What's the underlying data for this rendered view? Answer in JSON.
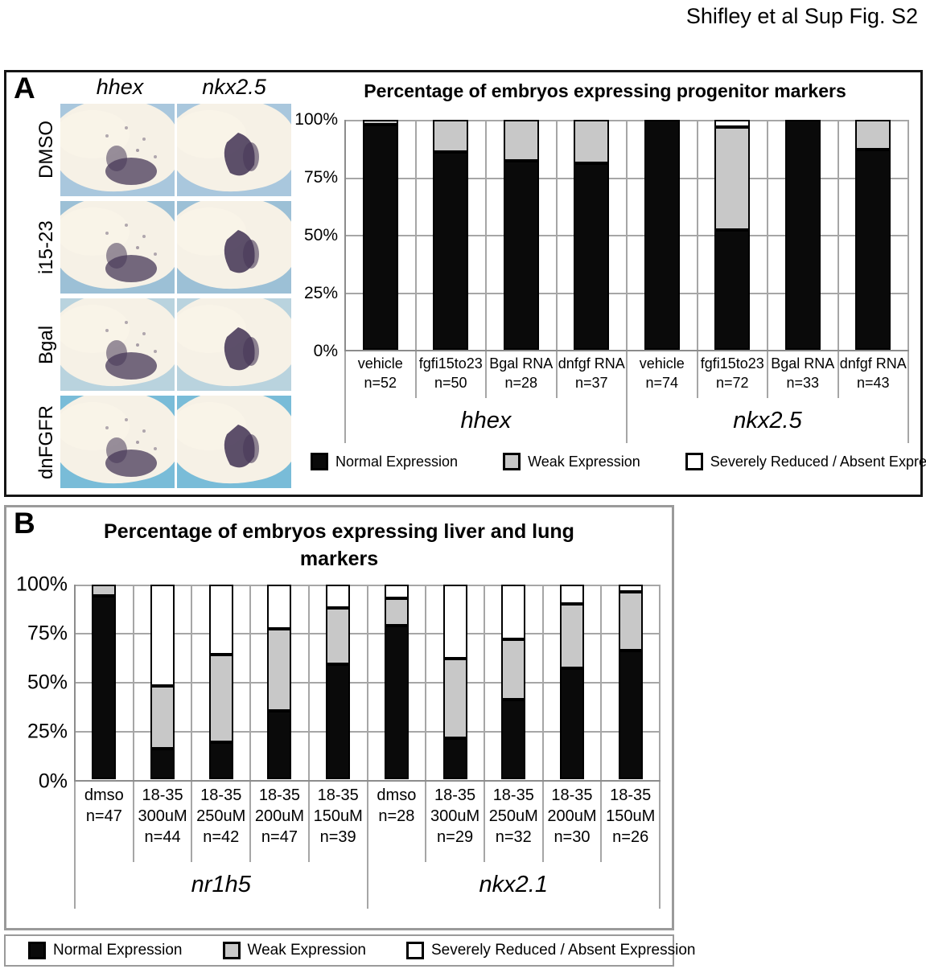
{
  "page": {
    "title": "Shifley et al Sup Fig. S2"
  },
  "colors": {
    "normal": "#0a0a0a",
    "weak": "#c8c8c8",
    "severe": "#ffffff",
    "segment_border": "#000000",
    "grid": "#a6a6a6",
    "axis": "#8c8c8c",
    "panel_a_border": "#151515",
    "panel_b_border": "#9a9a9a"
  },
  "legend_items": [
    {
      "name": "normal",
      "label": "Normal Expression"
    },
    {
      "name": "weak",
      "label": "Weak Expression"
    },
    {
      "name": "severe",
      "label": "Severely Reduced / Absent Expression"
    }
  ],
  "panel_a": {
    "label": "A",
    "embryo_grid": {
      "col_headers": [
        "hhex",
        "nkx2.5"
      ],
      "rows": [
        {
          "label": "DMSO",
          "bg": "#a9c7dd"
        },
        {
          "label": "i15-23",
          "bg": "#9cc0d6"
        },
        {
          "label": "Bgal",
          "bg": "#b9d3de"
        },
        {
          "label": "dnFGFR",
          "bg": "#79bcd8"
        }
      ],
      "embryo_body_color": "#f2ead9",
      "stain_color": "#473858"
    }
  },
  "panel_b": {
    "label": "B"
  },
  "chart_data": [
    {
      "id": "chart-a",
      "type": "bar",
      "stacked": true,
      "title": "Percentage of embryos expressing progenitor markers",
      "ylabel": "",
      "ylim": [
        0,
        100
      ],
      "yticks": [
        "100%",
        "75%",
        "50%",
        "25%",
        "0%"
      ],
      "grid": true,
      "legend_position": "bottom",
      "series_keys": [
        "normal",
        "weak",
        "severe"
      ],
      "series_names": [
        "Normal Expression",
        "Weak Expression",
        "Severely Reduced / Absent Expression"
      ],
      "groups": [
        {
          "label": "hhex",
          "span": 4
        },
        {
          "label": "nkx2.5",
          "span": 4
        }
      ],
      "categories": [
        {
          "lines": [
            "vehicle",
            "n=52"
          ],
          "normal": 98,
          "weak": 2,
          "severe": 0
        },
        {
          "lines": [
            "fgfi15to23",
            "n=50"
          ],
          "normal": 86,
          "weak": 14,
          "severe": 0
        },
        {
          "lines": [
            "Bgal RNA",
            "n=28"
          ],
          "normal": 82,
          "weak": 18,
          "severe": 0
        },
        {
          "lines": [
            "dnfgf RNA",
            "n=37"
          ],
          "normal": 81,
          "weak": 19,
          "severe": 0
        },
        {
          "lines": [
            "vehicle",
            "n=74"
          ],
          "normal": 100,
          "weak": 0,
          "severe": 0
        },
        {
          "lines": [
            "fgfi15to23",
            "n=72"
          ],
          "normal": 52,
          "weak": 45,
          "severe": 3
        },
        {
          "lines": [
            "Bgal RNA",
            "n=33"
          ],
          "normal": 100,
          "weak": 0,
          "severe": 0
        },
        {
          "lines": [
            "dnfgf RNA",
            "n=43"
          ],
          "normal": 87,
          "weak": 13,
          "severe": 0
        }
      ]
    },
    {
      "id": "chart-b",
      "type": "bar",
      "stacked": true,
      "title": "Percentage of embryos expressing liver and lung markers",
      "ylabel": "",
      "ylim": [
        0,
        100
      ],
      "yticks": [
        "100%",
        "75%",
        "50%",
        "25%",
        "0%"
      ],
      "grid": true,
      "legend_position": "bottom",
      "series_keys": [
        "normal",
        "weak",
        "severe"
      ],
      "series_names": [
        "Normal Expression",
        "Weak Expression",
        "Severely Reduced / Absent Expression"
      ],
      "groups": [
        {
          "label": "nr1h5",
          "span": 5
        },
        {
          "label": "nkx2.1",
          "span": 5
        }
      ],
      "categories": [
        {
          "lines": [
            "dmso",
            "n=47"
          ],
          "normal": 94,
          "weak": 6,
          "severe": 0
        },
        {
          "lines": [
            "18-35",
            "300uM",
            "n=44"
          ],
          "normal": 16,
          "weak": 32,
          "severe": 52
        },
        {
          "lines": [
            "18-35",
            "250uM",
            "n=42"
          ],
          "normal": 19,
          "weak": 45,
          "severe": 36
        },
        {
          "lines": [
            "18-35",
            "200uM",
            "n=47"
          ],
          "normal": 35,
          "weak": 42,
          "severe": 23
        },
        {
          "lines": [
            "18-35",
            "150uM",
            "n=39"
          ],
          "normal": 59,
          "weak": 29,
          "severe": 12
        },
        {
          "lines": [
            "dmso",
            "n=28"
          ],
          "normal": 79,
          "weak": 14,
          "severe": 7
        },
        {
          "lines": [
            "18-35",
            "300uM",
            "n=29"
          ],
          "normal": 21,
          "weak": 41,
          "severe": 38
        },
        {
          "lines": [
            "18-35",
            "250uM",
            "n=32"
          ],
          "normal": 41,
          "weak": 31,
          "severe": 28
        },
        {
          "lines": [
            "18-35",
            "200uM",
            "n=30"
          ],
          "normal": 57,
          "weak": 33,
          "severe": 10
        },
        {
          "lines": [
            "18-35",
            "150uM",
            "n=26"
          ],
          "normal": 66,
          "weak": 30,
          "severe": 4
        }
      ]
    }
  ]
}
